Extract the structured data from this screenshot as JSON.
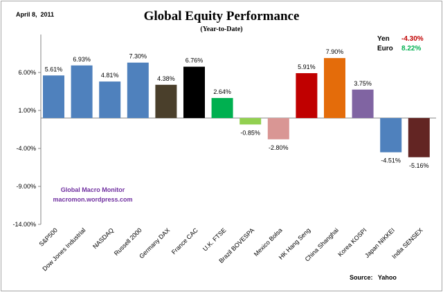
{
  "chart_data": {
    "type": "bar",
    "title": "Global Equity Performance",
    "subtitle": "(Year-to-Date)",
    "date": "April 8,  2011",
    "xlabel": "",
    "ylabel": "",
    "ylim": [
      -14,
      11
    ],
    "yticks": [
      6,
      1,
      -4,
      -9,
      -14
    ],
    "ytick_labels": [
      "6.00%",
      "1.00%",
      "-4.00%",
      "-9.00%",
      "-14.00%"
    ],
    "grid": false,
    "categories": [
      "S&P500",
      "Dow Jones Industrial",
      "NASDAQ",
      "Russell 2000",
      "Germany DAX",
      "France CAC",
      "U.K. FTSE",
      "Brazil BOVESPA",
      "Mexico Bolsa",
      "HK Hang Seng",
      "China Shanghai",
      "Korea KOSPI",
      "Japan NIKKEI",
      "India SENSEX"
    ],
    "values": [
      5.61,
      6.93,
      4.81,
      7.3,
      4.38,
      6.76,
      2.64,
      -0.85,
      -2.8,
      5.91,
      7.9,
      3.75,
      -4.51,
      -5.16
    ],
    "data_labels": [
      "5.61%",
      "6.93%",
      "4.81%",
      "7.30%",
      "4.38%",
      "6.76%",
      "2.64%",
      "-0.85%",
      "-2.80%",
      "5.91%",
      "7.90%",
      "3.75%",
      "-4.51%",
      "-5.16%"
    ],
    "colors": [
      "#4f81bd",
      "#4f81bd",
      "#4f81bd",
      "#4f81bd",
      "#4a3f2b",
      "#000000",
      "#00b050",
      "#92d050",
      "#d99694",
      "#c00000",
      "#e46c0a",
      "#8064a2",
      "#4f81bd",
      "#632523"
    ],
    "annotations": {
      "currency": [
        {
          "name": "Yen",
          "value": "-4.30%",
          "color": "#c00000"
        },
        {
          "name": "Euro",
          "value": "8.22%",
          "color": "#00b050"
        }
      ],
      "watermark_line1": "Global Macro Monitor",
      "watermark_line2": "macromon.wordpress.com",
      "watermark_color": "#7030a0",
      "source": "Source:   Yahoo"
    }
  }
}
